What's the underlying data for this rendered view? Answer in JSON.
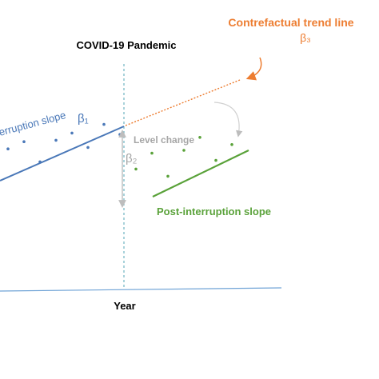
{
  "event_label": "COVID-19 Pandemic",
  "x_axis_label": "Year",
  "pre_slope_label": "erruption slope",
  "pre_slope_coef": "β₁",
  "level_change_label": "Level change",
  "level_change_coef": "β₂",
  "counterfactual_label": "Contrefactual trend line",
  "counterfactual_coef": "β₃",
  "post_slope_label": "Post-interruption slope",
  "colors": {
    "pre": "#4a78b8",
    "post": "#5aa23a",
    "counterfactual": "#ed7d31",
    "level": "#bdbdbd",
    "axis": "#6fa3d6",
    "divider": "#6fb3c2",
    "text": "#000000"
  },
  "pre_points": [
    {
      "x": 1,
      "y": 4.1
    },
    {
      "x": 2,
      "y": 4.6
    },
    {
      "x": 3,
      "y": 3.2
    },
    {
      "x": 4,
      "y": 4.7
    },
    {
      "x": 5,
      "y": 5.2
    },
    {
      "x": 6,
      "y": 4.2
    },
    {
      "x": 7,
      "y": 5.8
    },
    {
      "x": 8,
      "y": 5.1
    }
  ],
  "post_points": [
    {
      "x": 9,
      "y": 2.7
    },
    {
      "x": 10,
      "y": 3.8
    },
    {
      "x": 11,
      "y": 2.2
    },
    {
      "x": 12,
      "y": 4.0
    },
    {
      "x": 13,
      "y": 4.9
    },
    {
      "x": 14,
      "y": 3.3
    },
    {
      "x": 15,
      "y": 4.4
    }
  ]
}
